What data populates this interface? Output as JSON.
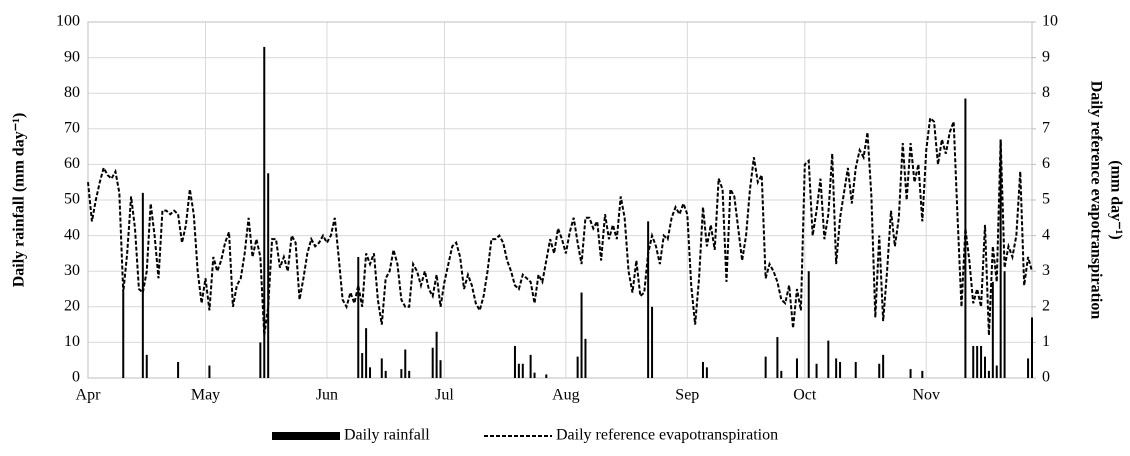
{
  "chart_data": {
    "type": "bar-line",
    "categories": [
      "Apr",
      null,
      null,
      null,
      null,
      null,
      null,
      null,
      null,
      null,
      null,
      null,
      null,
      null,
      null,
      null,
      null,
      null,
      null,
      null,
      null,
      null,
      null,
      null,
      null,
      null,
      null,
      null,
      null,
      null,
      "May",
      null,
      null,
      null,
      null,
      null,
      null,
      null,
      null,
      null,
      null,
      null,
      null,
      null,
      null,
      null,
      null,
      null,
      null,
      null,
      null,
      null,
      null,
      null,
      null,
      null,
      null,
      null,
      null,
      null,
      null,
      "Jun",
      null,
      null,
      null,
      null,
      null,
      null,
      null,
      null,
      null,
      null,
      null,
      null,
      null,
      null,
      null,
      null,
      null,
      null,
      null,
      null,
      null,
      null,
      null,
      null,
      null,
      null,
      null,
      null,
      null,
      "Jul",
      null,
      null,
      null,
      null,
      null,
      null,
      null,
      null,
      null,
      null,
      null,
      null,
      null,
      null,
      null,
      null,
      null,
      null,
      null,
      null,
      null,
      null,
      null,
      null,
      null,
      null,
      null,
      null,
      null,
      null,
      "Aug",
      null,
      null,
      null,
      null,
      null,
      null,
      null,
      null,
      null,
      null,
      null,
      null,
      null,
      null,
      null,
      null,
      null,
      null,
      null,
      null,
      null,
      null,
      null,
      null,
      null,
      null,
      null,
      null,
      null,
      null,
      "Sep",
      null,
      null,
      null,
      null,
      null,
      null,
      null,
      null,
      null,
      null,
      null,
      null,
      null,
      null,
      null,
      null,
      null,
      null,
      null,
      null,
      null,
      null,
      null,
      null,
      null,
      null,
      null,
      null,
      null,
      "Oct",
      null,
      null,
      null,
      null,
      null,
      null,
      null,
      null,
      null,
      null,
      null,
      null,
      null,
      null,
      null,
      null,
      null,
      null,
      null,
      null,
      null,
      null,
      null,
      null,
      null,
      null,
      null,
      null,
      null,
      null,
      "Nov",
      null,
      null,
      null,
      null,
      null,
      null,
      null,
      null,
      null,
      null,
      null,
      null,
      null,
      null,
      null,
      null,
      null,
      null,
      null,
      null,
      null,
      null,
      null,
      null,
      null,
      null,
      null
    ],
    "series": [
      {
        "name": "Daily rainfall",
        "type": "bar",
        "color": "#000000",
        "values": [
          0,
          0,
          0,
          0,
          0,
          0,
          0,
          0,
          0,
          24,
          0,
          0,
          0,
          0,
          52,
          6.5,
          0,
          0,
          0,
          0,
          0,
          0,
          0,
          4.5,
          0,
          0,
          0,
          0,
          0,
          0,
          0,
          3.5,
          0,
          0,
          0,
          0,
          0,
          0,
          0,
          0,
          0,
          0,
          0,
          0,
          10,
          93,
          57.5,
          0,
          0,
          0,
          0,
          0,
          0,
          0,
          0,
          0,
          0,
          0,
          0,
          0,
          0,
          0,
          0,
          0,
          0,
          0,
          0,
          0,
          0,
          34,
          7,
          14,
          3,
          0,
          0,
          5.5,
          2,
          0,
          0,
          0,
          2.5,
          8,
          2,
          0,
          0,
          0,
          0,
          0,
          8.5,
          13,
          5,
          0,
          0,
          0,
          0,
          0,
          0,
          0,
          0,
          0,
          0,
          0,
          0,
          0,
          0,
          0,
          0,
          0,
          0,
          9,
          4,
          4,
          0,
          6.5,
          1.5,
          0,
          0,
          1,
          0,
          0,
          0,
          0,
          0,
          0,
          0,
          6,
          24,
          11,
          0,
          0,
          0,
          0,
          0,
          0,
          0,
          0,
          0,
          0,
          0,
          0,
          0,
          0,
          0,
          44,
          20,
          0,
          0,
          0,
          0,
          0,
          0,
          0,
          0,
          0,
          0,
          0,
          0,
          4.5,
          3,
          0,
          0,
          0,
          0,
          0,
          0,
          0,
          0,
          0,
          0,
          0,
          0,
          0,
          0,
          6,
          0,
          0,
          11.5,
          2,
          0,
          0,
          0,
          5.5,
          0,
          0,
          30,
          0,
          4,
          0,
          0,
          10.5,
          0,
          5.5,
          4.5,
          0,
          0,
          0,
          4.5,
          0,
          0,
          0,
          0,
          0,
          4,
          6.5,
          0,
          0,
          0,
          0,
          0,
          0,
          2.5,
          0,
          0,
          2,
          0,
          0,
          0,
          0,
          0,
          0,
          0,
          0,
          0,
          0,
          78.5,
          0,
          9,
          9,
          9,
          6,
          2,
          27,
          3.5,
          67,
          30,
          0,
          0,
          0,
          0,
          0,
          5.5,
          17
        ]
      },
      {
        "name": "Daily reference evapotranspiration",
        "type": "line",
        "axis": "y2",
        "color": "#000000",
        "dash": true,
        "values": [
          5.5,
          4.4,
          5.0,
          5.5,
          5.9,
          5.7,
          5.6,
          5.8,
          5.2,
          2.4,
          3.5,
          5.1,
          4.2,
          2.5,
          2.4,
          3.0,
          4.9,
          4.0,
          2.8,
          4.7,
          4.7,
          4.6,
          4.7,
          4.6,
          3.8,
          4.3,
          5.3,
          4.6,
          3.0,
          2.1,
          2.8,
          1.9,
          3.4,
          3.0,
          3.3,
          3.8,
          4.1,
          2.0,
          2.6,
          2.8,
          3.5,
          4.5,
          3.4,
          3.9,
          3.4,
          1.2,
          2.0,
          3.9,
          3.9,
          3.1,
          3.4,
          3.0,
          4.0,
          3.8,
          2.2,
          2.8,
          3.5,
          3.9,
          3.7,
          3.8,
          4.0,
          3.8,
          4.0,
          4.5,
          3.4,
          2.2,
          2.0,
          2.4,
          2.1,
          2.6,
          2.0,
          3.5,
          3.2,
          3.5,
          2.2,
          1.5,
          2.8,
          3.0,
          3.6,
          3.2,
          2.2,
          2.0,
          2.0,
          3.2,
          3.0,
          2.6,
          3.0,
          2.5,
          2.3,
          2.9,
          2.0,
          2.7,
          3.2,
          3.7,
          3.8,
          3.4,
          2.5,
          2.9,
          2.6,
          2.1,
          1.9,
          2.3,
          3.0,
          3.9,
          3.9,
          4.0,
          3.8,
          3.3,
          3.0,
          2.6,
          2.5,
          2.9,
          2.8,
          2.7,
          2.1,
          2.9,
          2.7,
          3.3,
          3.9,
          3.5,
          4.2,
          3.9,
          3.5,
          4.1,
          4.5,
          3.8,
          3.2,
          4.5,
          4.5,
          4.2,
          4.4,
          3.3,
          4.6,
          3.9,
          4.3,
          3.9,
          5.1,
          4.5,
          3.0,
          2.4,
          3.3,
          2.3,
          2.4,
          3.5,
          4.0,
          3.7,
          3.2,
          4.0,
          3.9,
          4.5,
          4.8,
          4.6,
          4.9,
          4.6,
          2.6,
          1.5,
          2.8,
          4.8,
          3.7,
          4.3,
          3.6,
          5.6,
          5.3,
          2.7,
          5.3,
          5.1,
          4.2,
          3.3,
          4.0,
          5.3,
          6.2,
          5.5,
          5.7,
          2.8,
          3.2,
          3.0,
          2.7,
          2.2,
          2.1,
          2.6,
          1.4,
          2.5,
          1.9,
          6.0,
          6.1,
          4.0,
          4.7,
          5.6,
          3.9,
          4.6,
          6.3,
          3.2,
          4.5,
          5.2,
          5.9,
          4.9,
          5.9,
          6.4,
          6.2,
          6.9,
          5.1,
          1.7,
          4.0,
          1.6,
          3.0,
          4.7,
          3.7,
          4.5,
          6.6,
          5.0,
          6.6,
          5.5,
          6.0,
          4.4,
          6.4,
          7.3,
          7.2,
          6.0,
          6.7,
          6.3,
          6.9,
          7.2,
          4.5,
          2.0,
          4.2,
          3.3,
          2.1,
          2.5,
          2.0,
          4.3,
          1.2,
          3.7,
          2.7,
          6.7,
          3.1,
          3.7,
          3.4,
          4.0,
          5.8,
          2.6,
          3.4,
          3.0
        ]
      }
    ],
    "y_label": "Daily rainfall (mm day⁻¹)",
    "y2_label": [
      "Daily reference evapotranspiration",
      "(mm day⁻¹)"
    ],
    "ylim": [
      0,
      100
    ],
    "yticks": [
      0,
      10,
      20,
      30,
      40,
      50,
      60,
      70,
      80,
      90,
      100
    ],
    "y2lim": [
      0,
      10
    ],
    "y2ticks": [
      0,
      1,
      2,
      3,
      4,
      5,
      6,
      7,
      8,
      9,
      10
    ],
    "grid": true,
    "legend": "bottom"
  }
}
